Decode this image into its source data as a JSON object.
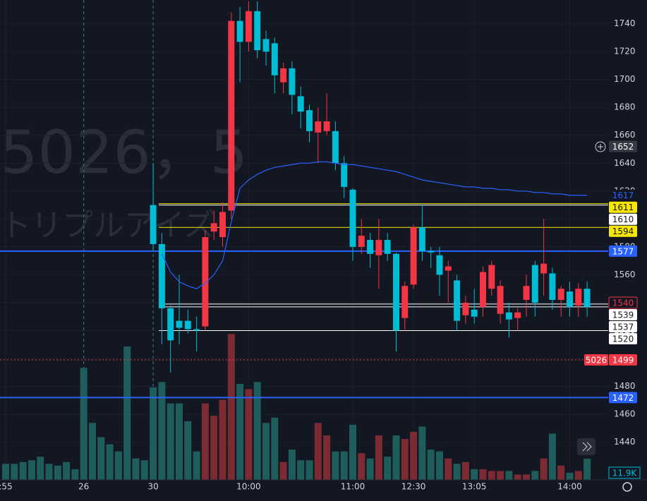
{
  "chart_data": {
    "type": "candlestick",
    "watermark": [
      "5026，5",
      "トリプルアイズ"
    ],
    "symbol": "5026",
    "categories": [
      ":55",
      null,
      null,
      null,
      null,
      null,
      null,
      null,
      null,
      "26",
      null,
      null,
      null,
      null,
      null,
      null,
      null,
      "30",
      null,
      null,
      null,
      null,
      null,
      null,
      null,
      null,
      null,
      null,
      "10:00",
      null,
      null,
      null,
      null,
      null,
      null,
      null,
      null,
      null,
      null,
      null,
      "11:00",
      null,
      null,
      null,
      null,
      null,
      null,
      "12:30",
      null,
      null,
      null,
      null,
      null,
      null,
      "13:05",
      null,
      null,
      null,
      null,
      null,
      null,
      null,
      null,
      null,
      null,
      "14:00",
      null,
      null,
      null
    ],
    "open": [
      null,
      null,
      null,
      null,
      null,
      null,
      null,
      null,
      null,
      null,
      null,
      null,
      null,
      null,
      null,
      null,
      null,
      1610,
      1582,
      1536,
      1527,
      1527,
      1521,
      1523,
      1591,
      1587,
      1606,
      1742,
      1727,
      1749,
      1729,
      1726,
      1698,
      1708,
      1688,
      1678,
      1662,
      1663,
      1663,
      1640,
      1621,
      1580,
      1585,
      1574,
      1585,
      1575,
      1529,
      1553,
      1594,
      1577,
      1574,
      1563,
      1556,
      1531,
      1535,
      1537,
      1550,
      1532,
      1533,
      1529,
      1542,
      1567,
      1561,
      1561,
      1542,
      1548,
      1538,
      1550,
      null
    ],
    "high": [
      null,
      null,
      null,
      null,
      null,
      null,
      null,
      null,
      null,
      null,
      null,
      null,
      null,
      null,
      null,
      null,
      null,
      1640,
      1590,
      1538,
      1560,
      1535,
      1530,
      1592,
      1606,
      1612,
      1748,
      1752,
      1756,
      1756,
      1735,
      1730,
      1712,
      1713,
      1695,
      1682,
      1680,
      1690,
      1670,
      1645,
      1622,
      1600,
      1590,
      1600,
      1590,
      1576,
      1555,
      1596,
      1610,
      1580,
      1580,
      1570,
      1560,
      1545,
      1550,
      1566,
      1570,
      1556,
      1540,
      1536,
      1560,
      1570,
      1600,
      1565,
      1552,
      1555,
      1554,
      1555,
      null
    ],
    "low": [
      null,
      null,
      null,
      null,
      null,
      null,
      null,
      null,
      null,
      null,
      null,
      null,
      null,
      null,
      null,
      null,
      null,
      1578,
      1510,
      1490,
      1510,
      1518,
      1505,
      1520,
      1585,
      1580,
      1600,
      1698,
      1720,
      1715,
      1710,
      1690,
      1690,
      1675,
      1665,
      1655,
      1640,
      1660,
      1635,
      1615,
      1570,
      1575,
      1565,
      1550,
      1570,
      1505,
      1520,
      1550,
      1570,
      1565,
      1545,
      1540,
      1520,
      1525,
      1525,
      1530,
      1545,
      1525,
      1515,
      1520,
      1530,
      1530,
      1545,
      1535,
      1530,
      1530,
      1530,
      1530,
      null
    ],
    "close": [
      null,
      null,
      null,
      null,
      null,
      null,
      null,
      null,
      null,
      null,
      null,
      null,
      null,
      null,
      null,
      null,
      null,
      1582,
      1536,
      1513,
      1522,
      1521,
      1520,
      1587,
      1597,
      1605,
      1742,
      1727,
      1749,
      1721,
      1720,
      1703,
      1708,
      1689,
      1677,
      1663,
      1670,
      1670,
      1640,
      1623,
      1580,
      1588,
      1575,
      1585,
      1575,
      1520,
      1552,
      1594,
      1577,
      1576,
      1560,
      1566,
      1527,
      1540,
      1530,
      1562,
      1567,
      1552,
      1528,
      1533,
      1552,
      1540,
      1568,
      1542,
      1550,
      1537,
      1550,
      1537,
      null
    ],
    "up_color": "#f23645",
    "down_color": "#00bcd4",
    "volume": {
      "values": [
        9,
        9,
        10,
        11,
        13,
        9,
        8,
        10,
        6,
        63,
        32,
        24,
        20,
        16,
        75,
        12,
        11,
        52,
        55,
        43,
        43,
        33,
        16,
        43,
        36,
        45,
        82,
        54,
        51,
        55,
        32,
        35,
        10,
        17,
        11,
        11,
        32,
        25,
        16,
        16,
        31,
        15,
        12,
        25,
        13,
        25,
        23,
        27,
        30,
        17,
        16,
        12,
        9,
        10,
        6,
        6,
        5,
        5,
        5,
        3,
        3,
        5,
        12,
        26,
        8,
        4,
        5,
        11.9,
        null
      ],
      "last_label": "11.9K",
      "up_color": "#7d2b33",
      "down_color": "#1f5d5c"
    },
    "moving_average": {
      "color": "#2962ff",
      "values": [
        null,
        null,
        null,
        null,
        null,
        null,
        null,
        null,
        null,
        null,
        null,
        null,
        null,
        null,
        null,
        null,
        null,
        null,
        1575,
        1562,
        1555,
        1552,
        1550,
        1554,
        1560,
        1570,
        1598,
        1622,
        1628,
        1632,
        1635,
        1637,
        1638,
        1639,
        1640,
        1640,
        1641,
        1641,
        1640,
        1639,
        1639,
        1638,
        1637,
        1636,
        1635,
        1634,
        1632,
        1630,
        1628,
        1627,
        1626,
        1625,
        1624,
        1623,
        1623,
        1622,
        1622,
        1621,
        1621,
        1620,
        1620,
        1619,
        1619,
        1618,
        1618,
        1617,
        1617,
        1617,
        null
      ]
    },
    "ylim": [
      1413,
      1757
    ],
    "yticks": [
      1440,
      1460,
      1480,
      1500,
      1520,
      1540,
      1560,
      1580,
      1600,
      1620,
      1640,
      1660,
      1680,
      1700,
      1720,
      1740
    ],
    "price_levels": [
      {
        "value": 1652,
        "bg": "#363a45",
        "fg": "#ffffff"
      },
      {
        "value": 1617,
        "bg": "#131722",
        "fg": "#2962ff"
      },
      {
        "value": 1611,
        "bg": "#f7e600",
        "fg": "#131722",
        "line": "#f7e600"
      },
      {
        "value": 1610,
        "bg": "#ffffff",
        "fg": "#131722",
        "line": "#ffffff"
      },
      {
        "value": 1594,
        "bg": "#f7e600",
        "fg": "#131722",
        "line": "#f7e600"
      },
      {
        "value": 1577,
        "bg": "#2962ff",
        "fg": "#ffffff",
        "line": "#2962ff"
      },
      {
        "value": 1540,
        "bg": "#131722",
        "fg": "#f23645",
        "border": "#f23645"
      },
      {
        "value": 1539,
        "bg": "#ffffff",
        "fg": "#131722",
        "line": "#ffffff"
      },
      {
        "value": 1537,
        "bg": "#ffffff",
        "fg": "#131722",
        "line": "#ffffff"
      },
      {
        "value": 1520,
        "bg": "#ffffff",
        "fg": "#131722",
        "line": "#ffffff"
      },
      {
        "value": 1499,
        "bg": "#f23645",
        "fg": "#ffffff",
        "line": "#f23645"
      },
      {
        "value": 1472,
        "bg": "#2962ff",
        "fg": "#ffffff",
        "line": "#2962ff"
      }
    ]
  }
}
